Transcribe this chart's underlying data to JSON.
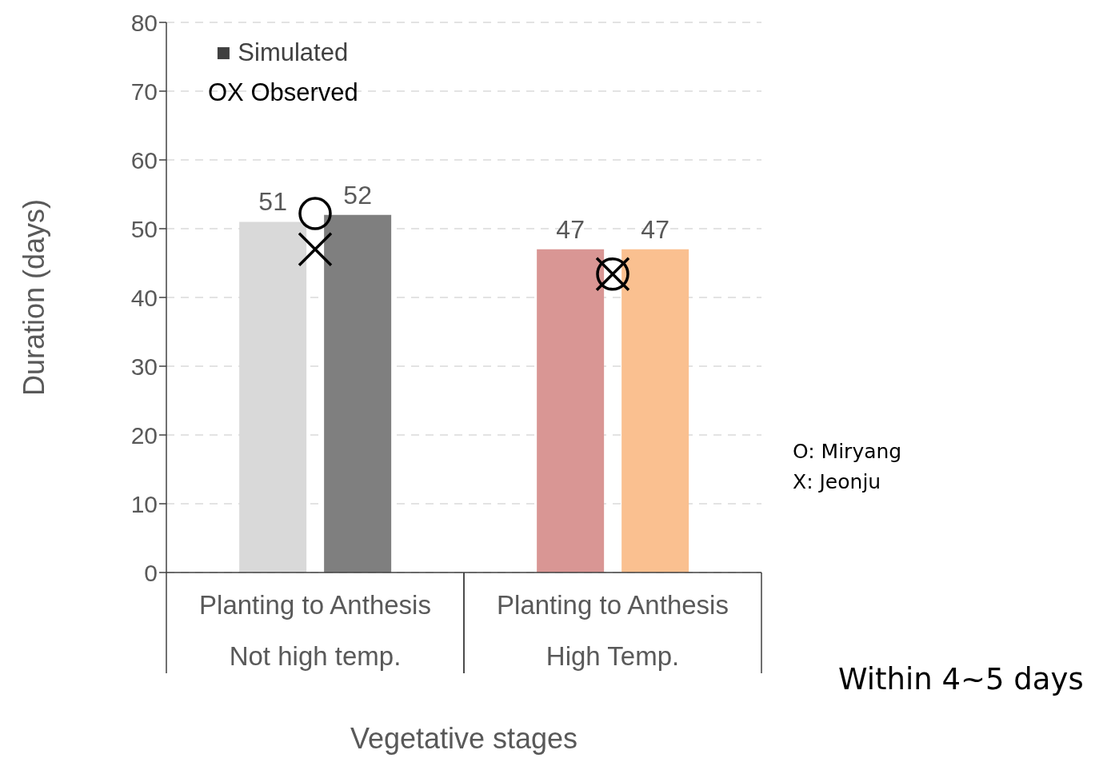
{
  "chart_data": {
    "type": "bar",
    "xlabel": "Vegetative stages",
    "ylabel": "Duration (days)",
    "categories": [
      "Planting to Anthesis\nNot high temp.",
      "Planting to Anthesis\nHigh Temp."
    ],
    "series": [
      {
        "colors": [
          "#d9d9d9",
          "#d99694"
        ],
        "values": [
          51,
          47
        ],
        "value_labels": [
          "51",
          "47"
        ]
      },
      {
        "colors": [
          "#7f7f7f",
          "#fac090"
        ],
        "values": [
          52,
          47
        ],
        "value_labels": [
          "52",
          "47"
        ]
      },
      {
        "type": "scatter",
        "marker": "circle",
        "color": "#000000",
        "values": [
          52.2,
          43.4
        ]
      },
      {
        "type": "scatter",
        "marker": "cross",
        "color": "#000000",
        "values": [
          47,
          43.4
        ]
      }
    ],
    "ylim": [
      0,
      80
    ],
    "yticks": [
      0,
      10,
      20,
      30,
      40,
      50,
      60,
      70,
      80
    ],
    "grid": "y",
    "annotations": [
      "■ Simulated",
      "OX Observed",
      "O: Miryang\nX: Jeonju",
      "Within 4~5 days"
    ]
  }
}
